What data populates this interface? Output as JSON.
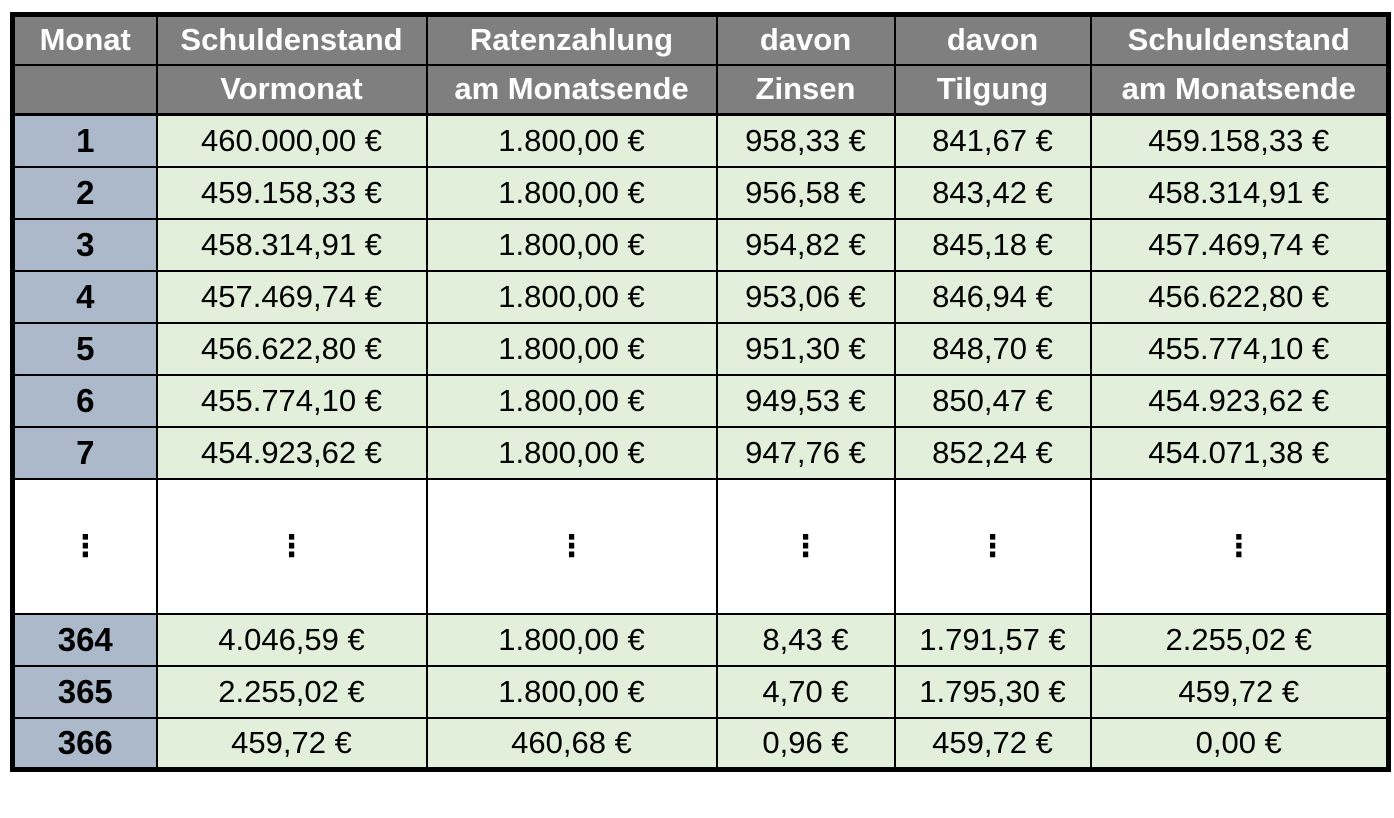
{
  "table": {
    "columns": [
      {
        "header_line1": "Monat",
        "header_line2": ""
      },
      {
        "header_line1": "Schuldenstand",
        "header_line2": "Vormonat"
      },
      {
        "header_line1": "Ratenzahlung",
        "header_line2": "am Monatsende"
      },
      {
        "header_line1": "davon",
        "header_line2": "Zinsen"
      },
      {
        "header_line1": "davon",
        "header_line2": "Tilgung"
      },
      {
        "header_line1": "Schuldenstand",
        "header_line2": "am Monatsende"
      }
    ],
    "rows_top": [
      [
        "1",
        "460.000,00 €",
        "1.800,00 €",
        "958,33 €",
        "841,67 €",
        "459.158,33 €"
      ],
      [
        "2",
        "459.158,33 €",
        "1.800,00 €",
        "956,58 €",
        "843,42 €",
        "458.314,91 €"
      ],
      [
        "3",
        "458.314,91 €",
        "1.800,00 €",
        "954,82 €",
        "845,18 €",
        "457.469,74 €"
      ],
      [
        "4",
        "457.469,74 €",
        "1.800,00 €",
        "953,06 €",
        "846,94 €",
        "456.622,80 €"
      ],
      [
        "5",
        "456.622,80 €",
        "1.800,00 €",
        "951,30 €",
        "848,70 €",
        "455.774,10 €"
      ],
      [
        "6",
        "455.774,10 €",
        "1.800,00 €",
        "949,53 €",
        "850,47 €",
        "454.923,62 €"
      ],
      [
        "7",
        "454.923,62 €",
        "1.800,00 €",
        "947,76 €",
        "852,24 €",
        "454.071,38 €"
      ]
    ],
    "ellipsis": "⋮",
    "rows_bottom": [
      [
        "364",
        "4.046,59 €",
        "1.800,00 €",
        "8,43 €",
        "1.791,57 €",
        "2.255,02 €"
      ],
      [
        "365",
        "2.255,02 €",
        "1.800,00 €",
        "4,70 €",
        "1.795,30 €",
        "459,72 €"
      ],
      [
        "366",
        "459,72 €",
        "460,68 €",
        "0,96 €",
        "459,72 €",
        "0,00 €"
      ]
    ],
    "colors": {
      "header_bg": "#7f7f7f",
      "header_text": "#ffffff",
      "month_bg": "#acb9ca",
      "data_bg": "#e2efda",
      "border": "#000000",
      "page_bg": "#ffffff"
    }
  },
  "chart_data": {
    "type": "table",
    "columns": [
      "Monat",
      "Schuldenstand Vormonat",
      "Ratenzahlung am Monatsende",
      "davon Zinsen",
      "davon Tilgung",
      "Schuldenstand am Monatsende"
    ],
    "rows": [
      [
        "1",
        "460.000,00 €",
        "1.800,00 €",
        "958,33 €",
        "841,67 €",
        "459.158,33 €"
      ],
      [
        "2",
        "459.158,33 €",
        "1.800,00 €",
        "956,58 €",
        "843,42 €",
        "458.314,91 €"
      ],
      [
        "3",
        "458.314,91 €",
        "1.800,00 €",
        "954,82 €",
        "845,18 €",
        "457.469,74 €"
      ],
      [
        "4",
        "457.469,74 €",
        "1.800,00 €",
        "953,06 €",
        "846,94 €",
        "456.622,80 €"
      ],
      [
        "5",
        "456.622,80 €",
        "1.800,00 €",
        "951,30 €",
        "848,70 €",
        "455.774,10 €"
      ],
      [
        "6",
        "455.774,10 €",
        "1.800,00 €",
        "949,53 €",
        "850,47 €",
        "454.923,62 €"
      ],
      [
        "7",
        "454.923,62 €",
        "1.800,00 €",
        "947,76 €",
        "852,24 €",
        "454.071,38 €"
      ],
      [
        "⋮",
        "⋮",
        "⋮",
        "⋮",
        "⋮",
        "⋮"
      ],
      [
        "364",
        "4.046,59 €",
        "1.800,00 €",
        "8,43 €",
        "1.791,57 €",
        "2.255,02 €"
      ],
      [
        "365",
        "2.255,02 €",
        "1.800,00 €",
        "4,70 €",
        "1.795,30 €",
        "459,72 €"
      ],
      [
        "366",
        "459,72 €",
        "460,68 €",
        "0,96 €",
        "459,72 €",
        "0,00 €"
      ]
    ]
  }
}
